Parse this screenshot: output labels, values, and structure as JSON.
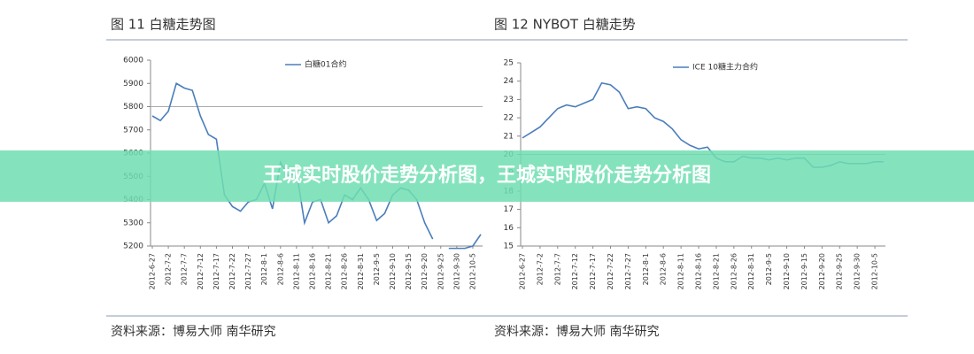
{
  "chart_data": [
    {
      "type": "line",
      "title": "图 11 白糖走势图",
      "source": "资料来源：博易大师    南华研究",
      "categories": [
        "2012-6-27",
        null,
        "2012-7-2",
        null,
        "2012-7-7",
        null,
        "2012-7-12",
        null,
        "2012-7-17",
        null,
        "2012-7-22",
        null,
        "2012-7-27",
        null,
        "2012-8-1",
        null,
        "2012-8-6",
        null,
        "2012-8-11",
        null,
        "2012-8-16",
        null,
        "2012-8-21",
        null,
        "2012-8-26",
        null,
        "2012-8-31",
        null,
        "2012-9-5",
        null,
        "2012-9-10",
        null,
        "2012-9-15",
        null,
        "2012-9-20",
        null,
        "2012-9-25",
        null,
        "2012-9-30",
        null,
        "2012-10-5",
        null
      ],
      "series": [
        {
          "name": "白糖01合约",
          "color": "#4a7ebb",
          "values": [
            5760,
            5740,
            5780,
            5900,
            5880,
            5870,
            5760,
            5680,
            5660,
            5420,
            5370,
            5350,
            5390,
            5400,
            5470,
            5360,
            5560,
            5500,
            5520,
            5300,
            5390,
            5400,
            5300,
            5330,
            5420,
            5400,
            5450,
            5400,
            5310,
            5340,
            5420,
            5450,
            5440,
            5400,
            5300,
            5230,
            null,
            5190,
            5190,
            5190,
            5200,
            5250
          ]
        }
      ],
      "ylim": [
        5200,
        6000
      ],
      "yticks": [
        5200,
        5300,
        5400,
        5500,
        5600,
        5700,
        5800,
        5900,
        6000
      ],
      "hline": 5800
    },
    {
      "type": "line",
      "title": "图 12 NYBOT 白糖走势",
      "source": "资料来源：博易大师    南华研究",
      "categories": [
        "2012-6-27",
        null,
        "2012-7-2",
        null,
        "2012-7-7",
        null,
        "2012-7-12",
        null,
        "2012-7-17",
        null,
        "2012-7-22",
        null,
        "2012-7-27",
        null,
        "2012-8-1",
        null,
        "2012-8-6",
        null,
        "2012-8-11",
        null,
        "2012-8-16",
        null,
        "2012-8-21",
        null,
        "2012-8-26",
        null,
        "2012-8-31",
        null,
        "2012-9-5",
        null,
        "2012-9-10",
        null,
        "2012-9-15",
        null,
        "2012-9-20",
        null,
        "2012-9-25",
        null,
        "2012-9-30",
        null,
        "2012-10-5",
        null
      ],
      "series": [
        {
          "name": "ICE 10糖主力合约",
          "color": "#4a7ebb",
          "values": [
            20.9,
            21.2,
            21.5,
            22.0,
            22.5,
            22.7,
            22.6,
            22.8,
            23.0,
            23.9,
            23.8,
            23.4,
            22.5,
            22.6,
            22.5,
            22.0,
            21.8,
            21.4,
            20.8,
            20.5,
            20.3,
            20.4,
            19.8,
            19.6,
            19.6,
            19.9,
            19.8,
            19.8,
            19.7,
            19.8,
            19.7,
            19.8,
            19.8,
            19.3,
            19.3,
            19.4,
            19.6,
            19.5,
            19.5,
            19.5,
            19.6,
            19.6
          ]
        }
      ],
      "ylim": [
        15,
        25
      ],
      "yticks": [
        15,
        16,
        17,
        18,
        19,
        20,
        21,
        22,
        23,
        24,
        25
      ],
      "hline": 20
    }
  ],
  "banner": "王城实时股价走势分析图，王城实时股价走势分析图"
}
